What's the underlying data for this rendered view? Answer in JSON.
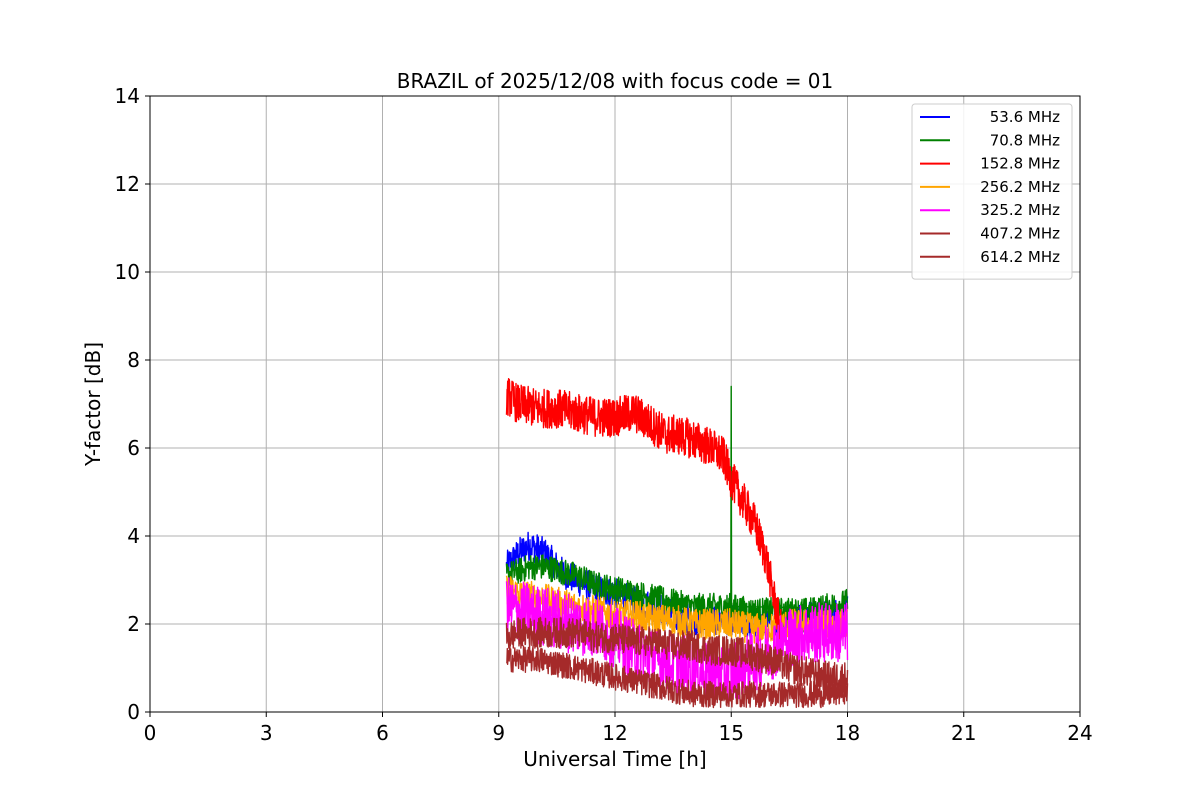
{
  "chart_data": {
    "type": "line",
    "title": "BRAZIL of 2025/12/08 with focus code = 01",
    "xlabel": "Universal Time [h]",
    "ylabel": "Y-factor [dB]",
    "xlim": [
      0,
      24
    ],
    "ylim": [
      0,
      14
    ],
    "xticks": [
      0,
      3,
      6,
      9,
      12,
      15,
      18,
      21,
      24
    ],
    "yticks": [
      0,
      2,
      4,
      6,
      8,
      10,
      12,
      14
    ],
    "grid": true,
    "legend_position": "top-right",
    "series": [
      {
        "name": "53.6 MHz",
        "legend_label": "  53.6 MHz",
        "color": "#0000ff",
        "x": [
          9.2,
          9.5,
          9.8,
          10.2,
          10.6,
          11.0,
          11.5,
          12.0,
          12.5,
          13.0,
          13.5,
          14.0,
          14.5,
          15.0,
          15.5,
          16.0,
          16.5,
          17.0,
          17.5,
          18.0
        ],
        "y": [
          3.3,
          3.6,
          3.8,
          3.6,
          3.2,
          3.0,
          2.8,
          2.7,
          2.5,
          2.4,
          2.2,
          2.1,
          2.1,
          2.1,
          2.0,
          2.0,
          2.1,
          2.2,
          2.2,
          2.3
        ],
        "noise": 0.35
      },
      {
        "name": "70.8 MHz",
        "legend_label": "  70.8 MHz",
        "color": "#008000",
        "x": [
          9.2,
          9.5,
          9.8,
          10.2,
          10.6,
          11.0,
          11.5,
          12.0,
          12.5,
          13.0,
          13.5,
          14.0,
          14.5,
          15.0,
          15.5,
          16.0,
          16.5,
          17.0,
          17.5,
          18.0
        ],
        "y": [
          3.1,
          3.2,
          3.3,
          3.3,
          3.2,
          3.1,
          2.9,
          2.8,
          2.7,
          2.6,
          2.5,
          2.4,
          2.4,
          2.4,
          2.3,
          2.3,
          2.3,
          2.3,
          2.4,
          2.5
        ],
        "noise": 0.3,
        "spike": {
          "x": 15.0,
          "y": 7.4
        }
      },
      {
        "name": "152.8 MHz",
        "legend_label": " 152.8 MHz",
        "color": "#ff0000",
        "x": [
          9.2,
          9.5,
          10.0,
          10.5,
          11.0,
          11.5,
          12.0,
          12.5,
          13.0,
          13.3,
          13.6,
          14.0,
          14.5,
          14.8,
          15.0,
          15.3,
          15.6,
          15.9,
          16.1,
          16.3
        ],
        "y": [
          7.2,
          7.0,
          6.9,
          6.9,
          6.8,
          6.7,
          6.7,
          6.8,
          6.5,
          6.3,
          6.3,
          6.2,
          6.0,
          5.8,
          5.3,
          4.8,
          4.3,
          3.5,
          2.6,
          1.8
        ],
        "noise": 0.45
      },
      {
        "name": "256.2 MHz",
        "legend_label": " 256.2 MHz",
        "color": "#ffa500",
        "x": [
          9.2,
          9.5,
          10.0,
          10.5,
          11.0,
          11.5,
          12.0,
          12.5,
          13.0,
          13.5,
          14.0,
          14.5,
          15.0,
          15.5,
          16.0,
          16.5,
          17.0,
          17.5,
          18.0
        ],
        "y": [
          2.8,
          2.7,
          2.6,
          2.5,
          2.4,
          2.3,
          2.2,
          2.2,
          2.1,
          2.1,
          2.0,
          2.0,
          2.0,
          1.9,
          1.9,
          2.0,
          2.0,
          2.0,
          2.0
        ],
        "noise": 0.35
      },
      {
        "name": "325.2 MHz",
        "legend_label": " 325.2 MHz",
        "color": "#ff00ff",
        "x": [
          9.2,
          9.5,
          10.0,
          10.5,
          11.0,
          11.5,
          12.0,
          12.5,
          13.0,
          13.5,
          14.0,
          14.5,
          15.0,
          15.5,
          16.0,
          16.5,
          17.0,
          17.5,
          18.0
        ],
        "y": [
          2.4,
          2.3,
          2.2,
          2.1,
          2.0,
          1.9,
          1.7,
          1.4,
          1.2,
          1.1,
          1.0,
          0.9,
          0.9,
          1.1,
          1.4,
          1.7,
          1.8,
          1.8,
          1.8
        ],
        "noise": 0.7
      },
      {
        "name": "407.2 MHz",
        "legend_label": " 407.2 MHz",
        "color": "#a52a2a",
        "x": [
          9.2,
          9.5,
          10.0,
          10.5,
          11.0,
          11.5,
          12.0,
          12.5,
          13.0,
          13.5,
          14.0,
          14.5,
          15.0,
          15.5,
          16.0,
          16.5,
          17.0,
          17.5,
          18.0
        ],
        "y": [
          1.2,
          1.2,
          1.2,
          1.1,
          1.0,
          0.9,
          0.8,
          0.7,
          0.6,
          0.5,
          0.4,
          0.4,
          0.4,
          0.4,
          0.4,
          0.4,
          0.4,
          0.4,
          0.5
        ],
        "noise": 0.3
      },
      {
        "name": "614.2 MHz",
        "legend_label": " 614.2 MHz",
        "color": "#a52a2a",
        "x": [
          9.2,
          9.5,
          10.0,
          10.5,
          11.0,
          11.5,
          12.0,
          12.5,
          13.0,
          13.5,
          14.0,
          14.5,
          15.0,
          15.5,
          16.0,
          16.5,
          17.0,
          17.5,
          18.0
        ],
        "y": [
          1.7,
          1.8,
          1.8,
          1.8,
          1.8,
          1.7,
          1.7,
          1.6,
          1.6,
          1.5,
          1.5,
          1.4,
          1.4,
          1.3,
          1.2,
          1.0,
          0.9,
          0.8,
          0.8
        ],
        "noise": 0.35
      }
    ]
  }
}
